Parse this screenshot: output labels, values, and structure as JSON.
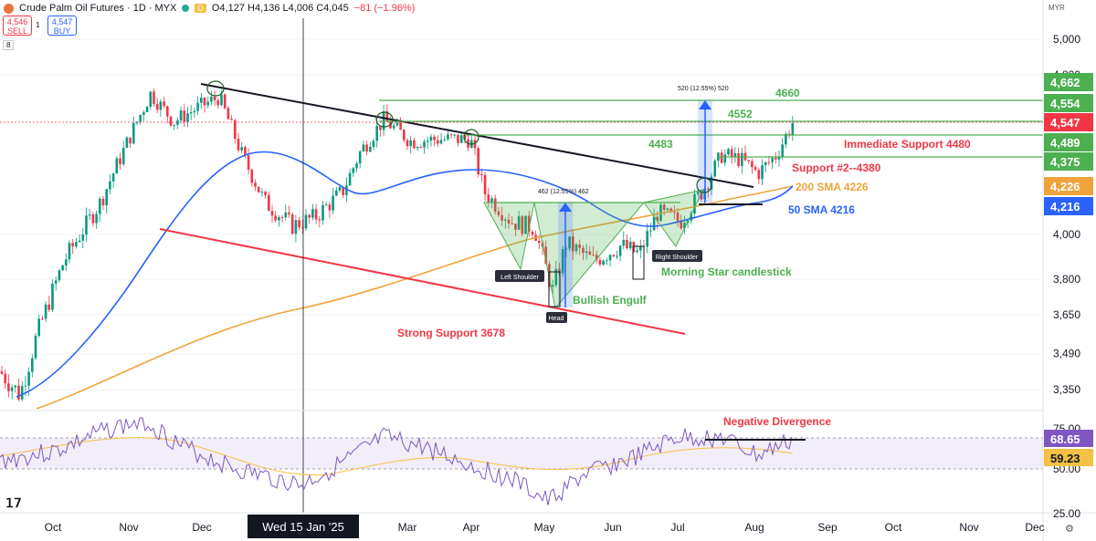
{
  "header": {
    "title": "Crude Palm Oil Futures · 1D · MYX",
    "badge": "D",
    "ohlc": "O4,127 H4,136 L4,006 C4,045",
    "change": "−81 (−1.96%)"
  },
  "trade": {
    "sell_price": "4,546",
    "sell_label": "SELL",
    "buy_price": "4,547",
    "buy_label": "BUY",
    "spread": "1",
    "count": "8"
  },
  "currency": "MYR",
  "colors": {
    "up": "#089981",
    "down": "#f23645",
    "sma50": "#2962ff",
    "sma200": "#f0a33b",
    "rsi": "#7e57c2",
    "green": "#4caf50",
    "red": "#f23645"
  },
  "chart_data": {
    "type": "candlestick",
    "yscale": "log",
    "ylim": [
      3250,
      5130
    ],
    "price_ticks": [
      "5,000",
      "4,800",
      "4,000",
      "3,800",
      "3,650",
      "3,490",
      "3,350"
    ],
    "x_ticks": [
      "Oct",
      "Nov",
      "Dec",
      "Mar",
      "Apr",
      "May",
      "Jun",
      "Jul",
      "Aug",
      "Sep",
      "Oct",
      "Nov",
      "Dec"
    ],
    "crosshair_label": "Wed 15 Jan '25",
    "price_badges": [
      {
        "text": "4,662",
        "color": "#4caf50"
      },
      {
        "text": "4,554",
        "color": "#4caf50"
      },
      {
        "text": "4,547",
        "color": "#f23645"
      },
      {
        "text": "4,489",
        "color": "#4caf50"
      },
      {
        "text": "4,375",
        "color": "#4caf50"
      },
      {
        "text": "4,226",
        "color": "#f0a33b"
      },
      {
        "text": "4,216",
        "color": "#2962ff"
      }
    ],
    "series": [
      {
        "name": "200 SMA 4226",
        "color": "#f0a33b"
      },
      {
        "name": "50 SMA 4216",
        "color": "#2962ff"
      }
    ],
    "annotations": {
      "level_4660": "4660",
      "level_4552": "4552",
      "level_4483": "4483",
      "immediate_support": "Immediate Support 4480",
      "support2": "Support #2--4380",
      "sma200": "200 SMA 4226",
      "sma50": "50 SMA 4216",
      "strong_support": "Strong Support 3678",
      "left_shoulder": "Left Shoulder",
      "head": "Head",
      "right_shoulder": "Right Shoulder",
      "bullish_engulf": "Bullish Engulf",
      "morning_star": "Morning Star candlestick",
      "measure1": "462 (12.55%) 462",
      "measure2": "520 (12.55%) 520",
      "negative_divergence": "Negative Divergence"
    },
    "rsi": {
      "ylim": [
        25,
        75
      ],
      "ticks": [
        "75.00",
        "50.00",
        "25.00"
      ],
      "badges": [
        {
          "text": "68.65",
          "color": "#7e57c2"
        },
        {
          "text": "59.23",
          "color": "#f5c043"
        }
      ]
    }
  }
}
